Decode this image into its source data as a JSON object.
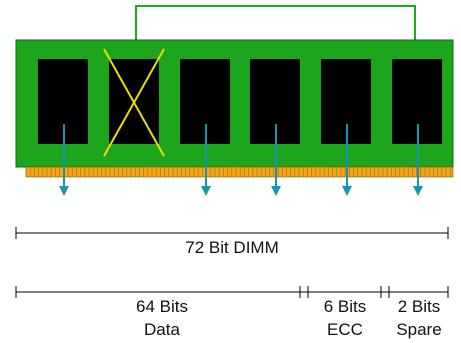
{
  "colors": {
    "module": "#1ea51e",
    "module_edge": "#0f6a0f",
    "chip": "#000000",
    "pins": "#f2a51b",
    "arrows": "#1596b5",
    "cross": "#e8e000",
    "reroute_line": "#18b018",
    "dimension_lines": "#000000"
  },
  "chips": [
    {
      "id": 1,
      "failed": false
    },
    {
      "id": 2,
      "failed": true
    },
    {
      "id": 3,
      "failed": false
    },
    {
      "id": 4,
      "failed": false
    },
    {
      "id": 5,
      "failed": false
    },
    {
      "id": 6,
      "failed": false
    }
  ],
  "labels": {
    "total": "72 Bit DIMM",
    "data_line1": "64 Bits",
    "data_line2": "Data",
    "ecc_line1": "6 Bits",
    "ecc_line2": "ECC",
    "spare_line1": "2 Bits",
    "spare_line2": "Spare"
  }
}
